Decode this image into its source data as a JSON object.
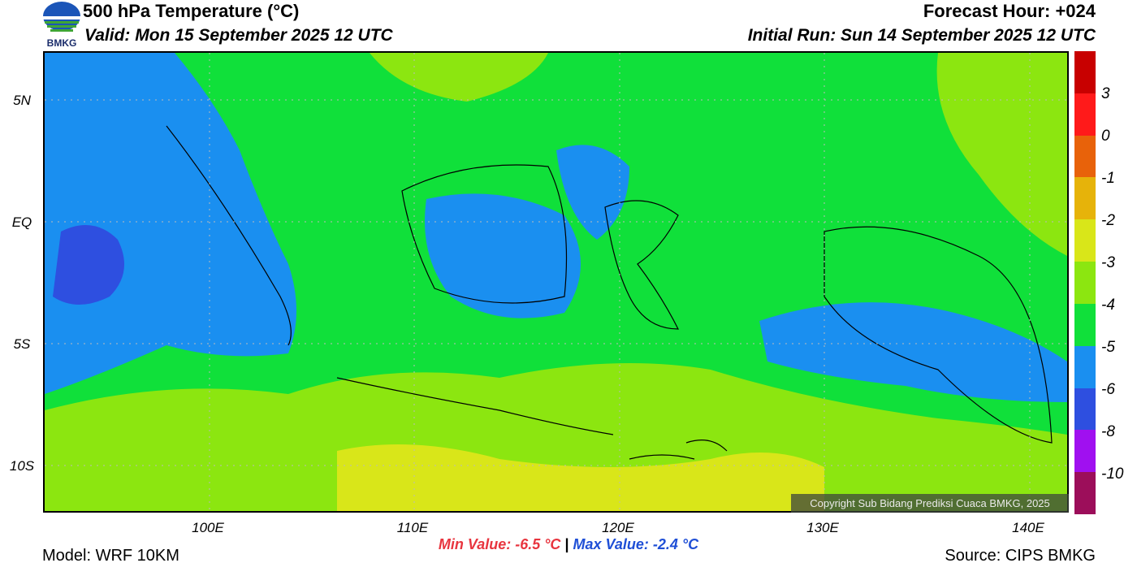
{
  "header": {
    "title": "500 hPa Temperature (°C)",
    "valid": "Valid: Mon 15 September 2025 12 UTC",
    "forecast_hour": "Forecast Hour: +024",
    "initial_run": "Initial Run: Sun 14 September 2025 12 UTC",
    "logo_text": "BMKG"
  },
  "map": {
    "lat_labels": [
      "5N",
      "EQ",
      "5S",
      "10S"
    ],
    "lon_labels": [
      "100E",
      "110E",
      "120E",
      "130E",
      "140E"
    ],
    "copyright": "Copyright Sub Bidang Prediksi Cuaca BMKG, 2025"
  },
  "colorbar": {
    "labels": [
      "3",
      "0",
      "-1",
      "-2",
      "-3",
      "-4",
      "-5",
      "-6",
      "-8",
      "-10"
    ],
    "colors": [
      "#c80000",
      "#ff1a1a",
      "#e8620a",
      "#e6b30a",
      "#d9e619",
      "#8ce610",
      "#10e03a",
      "#1a8ff0",
      "#2e4fe0",
      "#a010f0",
      "#9c0e5a"
    ]
  },
  "stats": {
    "min_label": "Min Value: -6.5 °C",
    "separator": "|",
    "max_label": "Max Value: -2.4 °C"
  },
  "footer": {
    "model": "Model: WRF 10KM",
    "source": "Source: CIPS BMKG"
  }
}
